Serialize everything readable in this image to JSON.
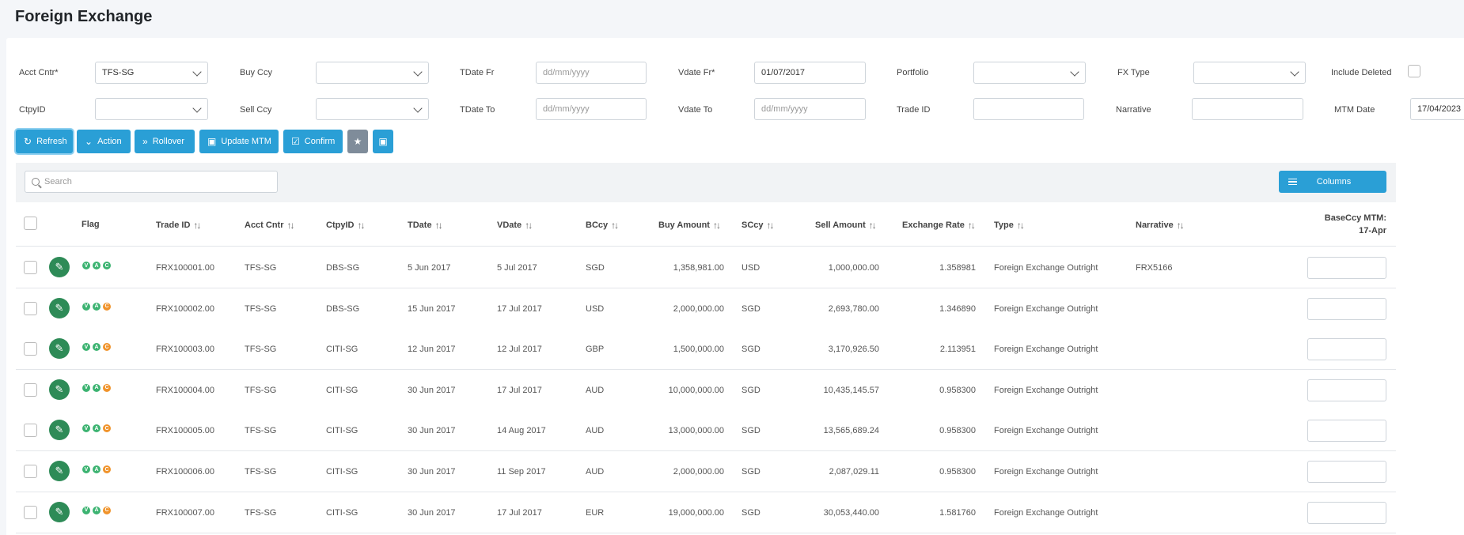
{
  "page": {
    "title": "Foreign Exchange"
  },
  "filters": {
    "acct_cntr": {
      "label": "Acct Cntr*",
      "value": "TFS-SG"
    },
    "buy_ccy": {
      "label": "Buy Ccy",
      "value": ""
    },
    "tdate_fr": {
      "label": "TDate Fr",
      "placeholder": "dd/mm/yyyy"
    },
    "vdate_fr": {
      "label": "Vdate Fr*",
      "value": "01/07/2017"
    },
    "portfolio": {
      "label": "Portfolio",
      "value": ""
    },
    "fx_type": {
      "label": "FX Type",
      "value": ""
    },
    "include_deleted": {
      "label": "Include Deleted"
    },
    "ctpy_id": {
      "label": "CtpyID",
      "value": ""
    },
    "sell_ccy": {
      "label": "Sell Ccy",
      "value": ""
    },
    "tdate_to": {
      "label": "TDate To",
      "placeholder": "dd/mm/yyyy"
    },
    "vdate_to": {
      "label": "Vdate To",
      "placeholder": "dd/mm/yyyy"
    },
    "trade_id": {
      "label": "Trade ID",
      "value": ""
    },
    "narrative": {
      "label": "Narrative",
      "value": ""
    },
    "mtm_date": {
      "label": "MTM Date",
      "value": "17/04/2023"
    }
  },
  "toolbar": {
    "refresh": "Refresh",
    "action": "Action",
    "rollover": "Rollover",
    "update_mtm": "Update MTM",
    "confirm": "Confirm"
  },
  "grid": {
    "search_placeholder": "Search",
    "columns_button": "Columns",
    "headers": {
      "flag": "Flag",
      "trade_id": "Trade ID",
      "acct_cntr": "Acct Cntr",
      "ctpy_id": "CtpyID",
      "tdate": "TDate",
      "vdate": "VDate",
      "bccy": "BCcy",
      "buy_amount": "Buy Amount",
      "sccy": "SCcy",
      "sell_amount": "Sell Amount",
      "exchange_rate": "Exchange Rate",
      "type": "Type",
      "narrative": "Narrative",
      "mtm_1": "BaseCcy MTM:",
      "mtm_2": "17-Apr"
    },
    "flag_letters": [
      "V",
      "A",
      "C"
    ],
    "flag_colors": {
      "v": "#3cb371",
      "a": "#3cb371",
      "c_confirmed": "#3cb371",
      "c_pending": "#f0932b"
    },
    "rows": [
      {
        "trade_id": "FRX100001.00",
        "acct_cntr": "TFS-SG",
        "ctpy_id": "DBS-SG",
        "tdate": "5 Jun 2017",
        "vdate": "5 Jul 2017",
        "bccy": "SGD",
        "buy_amount": "1,358,981.00",
        "sccy": "USD",
        "sell_amount": "1,000,000.00",
        "exchange_rate": "1.358981",
        "type": "Foreign Exchange Outright",
        "narrative": "FRX5166",
        "c_status": "confirmed"
      },
      {
        "trade_id": "FRX100002.00",
        "acct_cntr": "TFS-SG",
        "ctpy_id": "DBS-SG",
        "tdate": "15 Jun 2017",
        "vdate": "17 Jul 2017",
        "bccy": "USD",
        "buy_amount": "2,000,000.00",
        "sccy": "SGD",
        "sell_amount": "2,693,780.00",
        "exchange_rate": "1.346890",
        "type": "Foreign Exchange Outright",
        "narrative": "",
        "c_status": "pending"
      },
      {
        "trade_id": "FRX100003.00",
        "acct_cntr": "TFS-SG",
        "ctpy_id": "CITI-SG",
        "tdate": "12 Jun 2017",
        "vdate": "12 Jul 2017",
        "bccy": "GBP",
        "buy_amount": "1,500,000.00",
        "sccy": "SGD",
        "sell_amount": "3,170,926.50",
        "exchange_rate": "2.113951",
        "type": "Foreign Exchange Outright",
        "narrative": "",
        "c_status": "pending"
      },
      {
        "trade_id": "FRX100004.00",
        "acct_cntr": "TFS-SG",
        "ctpy_id": "CITI-SG",
        "tdate": "30 Jun 2017",
        "vdate": "17 Jul 2017",
        "bccy": "AUD",
        "buy_amount": "10,000,000.00",
        "sccy": "SGD",
        "sell_amount": "10,435,145.57",
        "exchange_rate": "0.958300",
        "type": "Foreign Exchange Outright",
        "narrative": "",
        "c_status": "pending"
      },
      {
        "trade_id": "FRX100005.00",
        "acct_cntr": "TFS-SG",
        "ctpy_id": "CITI-SG",
        "tdate": "30 Jun 2017",
        "vdate": "14 Aug 2017",
        "bccy": "AUD",
        "buy_amount": "13,000,000.00",
        "sccy": "SGD",
        "sell_amount": "13,565,689.24",
        "exchange_rate": "0.958300",
        "type": "Foreign Exchange Outright",
        "narrative": "",
        "c_status": "pending"
      },
      {
        "trade_id": "FRX100006.00",
        "acct_cntr": "TFS-SG",
        "ctpy_id": "CITI-SG",
        "tdate": "30 Jun 2017",
        "vdate": "11 Sep 2017",
        "bccy": "AUD",
        "buy_amount": "2,000,000.00",
        "sccy": "SGD",
        "sell_amount": "2,087,029.11",
        "exchange_rate": "0.958300",
        "type": "Foreign Exchange Outright",
        "narrative": "",
        "c_status": "pending"
      },
      {
        "trade_id": "FRX100007.00",
        "acct_cntr": "TFS-SG",
        "ctpy_id": "CITI-SG",
        "tdate": "30 Jun 2017",
        "vdate": "17 Jul 2017",
        "bccy": "EUR",
        "buy_amount": "19,000,000.00",
        "sccy": "SGD",
        "sell_amount": "30,053,440.00",
        "exchange_rate": "1.581760",
        "type": "Foreign Exchange Outright",
        "narrative": "",
        "c_status": "pending"
      }
    ]
  }
}
